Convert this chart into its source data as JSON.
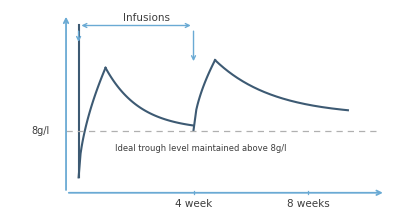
{
  "bg_color": "#ffffff",
  "line_color": "#3d5a73",
  "axis_color": "#6aaad4",
  "dashed_color": "#b0b0b0",
  "text_color": "#3d3d3d",
  "infusions_label": "Infusions",
  "trough_label": "Ideal trough level maintained above 8g/l",
  "ylabel": "8g/l",
  "x4_label": "4 week",
  "x8_label": "8 weeks",
  "figsize": [
    3.99,
    2.09
  ],
  "dpi": 100,
  "xlim": [
    0,
    10
  ],
  "ylim": [
    0,
    10
  ]
}
